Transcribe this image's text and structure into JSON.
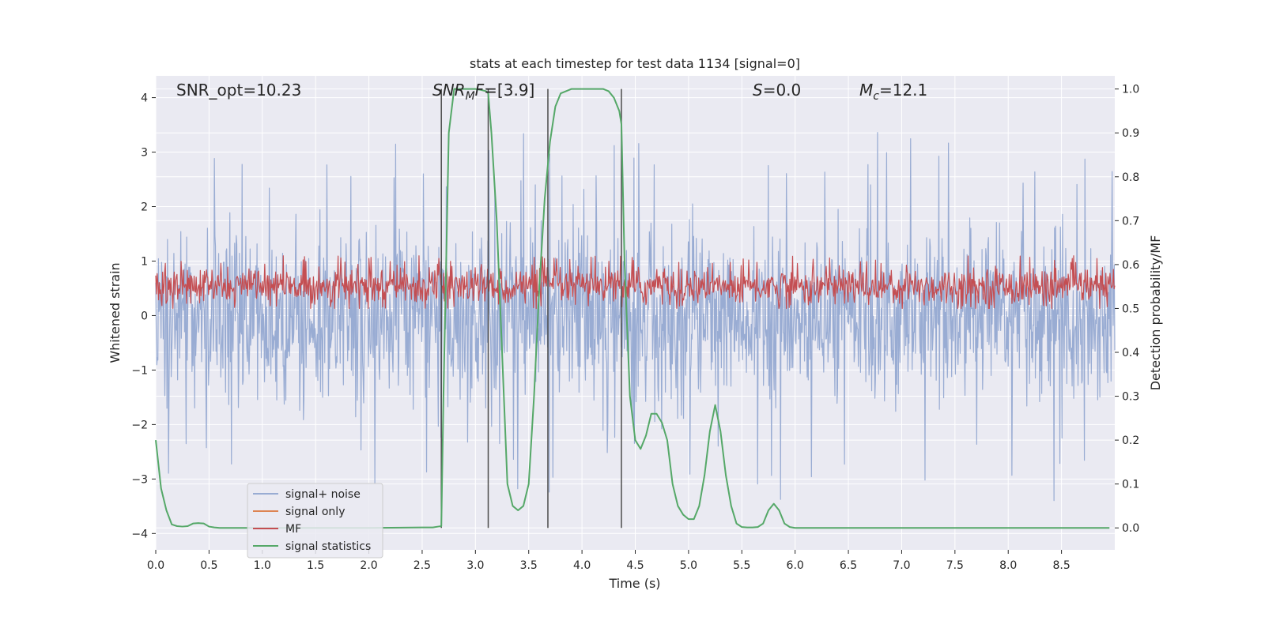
{
  "chart_data": {
    "type": "line",
    "title": "stats at each timestep for test data 1134 [signal=0]",
    "xlabel": "Time (s)",
    "ylabel": "Whitened strain",
    "ylabel_right": "Detection probability/MF",
    "xlim": [
      0.0,
      9.0
    ],
    "ylim_left": [
      -4.3,
      4.4
    ],
    "ylim_right": [
      -0.05,
      1.03
    ],
    "x_ticks": [
      "0.0",
      "0.5",
      "1.0",
      "1.5",
      "2.0",
      "2.5",
      "3.0",
      "3.5",
      "4.0",
      "4.5",
      "5.0",
      "5.5",
      "6.0",
      "6.5",
      "7.0",
      "7.5",
      "8.0",
      "8.5"
    ],
    "y_left_ticks": [
      "4",
      "3",
      "2",
      "1",
      "0",
      "−1",
      "−2",
      "−3",
      "−4"
    ],
    "y_right_ticks": [
      "1.0",
      "0.9",
      "0.8",
      "0.7",
      "0.6",
      "0.5",
      "0.4",
      "0.3",
      "0.2",
      "0.1",
      "0.0"
    ],
    "grid": true,
    "legend_position": "lower-left",
    "colors": {
      "background": "#eaeaf2",
      "noise": "#99acd3",
      "signal_only": "#dd8452",
      "mf": "#c44e52",
      "statistics": "#55a868",
      "vlines": "#4c4c4c"
    },
    "annotations": [
      {
        "key": "snr_opt",
        "text": "SNR_opt=10.23"
      },
      {
        "key": "snr_mf",
        "text": "=[3.9]",
        "math_main": "SNR",
        "math_sub": "M",
        "math_after": "F"
      },
      {
        "key": "s_value",
        "text": "=0.0",
        "math_main": "S"
      },
      {
        "key": "mc_value",
        "text": "=12.1",
        "math_main": "M",
        "math_sub": "c"
      }
    ],
    "vertical_lines_x": [
      2.68,
      3.12,
      3.68,
      4.37
    ],
    "series": [
      {
        "name": "signal+ noise",
        "axis": "left",
        "style": "dense noise trace",
        "typical_range": [
          -1.5,
          1.6
        ],
        "peak_range": [
          -3.6,
          3.4
        ]
      },
      {
        "name": "signal only",
        "axis": "left",
        "style": "flat (not visible)",
        "value": 0.0
      },
      {
        "name": "MF",
        "axis": "right",
        "style": "dense noise trace",
        "typical_range": [
          0.5,
          0.6
        ],
        "peak_range": [
          0.5,
          0.62
        ]
      },
      {
        "name": "signal statistics",
        "axis": "right",
        "style": "line",
        "x": [
          0.0,
          0.05,
          0.1,
          0.15,
          0.2,
          0.25,
          0.3,
          0.35,
          0.4,
          0.45,
          0.5,
          0.55,
          0.6,
          0.7,
          0.8,
          1.0,
          1.5,
          2.0,
          2.5,
          2.6,
          2.65,
          2.68,
          2.7,
          2.75,
          2.8,
          2.85,
          2.9,
          3.0,
          3.05,
          3.1,
          3.12,
          3.15,
          3.2,
          3.25,
          3.3,
          3.35,
          3.4,
          3.45,
          3.5,
          3.55,
          3.6,
          3.65,
          3.7,
          3.75,
          3.8,
          3.85,
          3.9,
          4.0,
          4.1,
          4.2,
          4.25,
          4.3,
          4.35,
          4.37,
          4.4,
          4.45,
          4.5,
          4.55,
          4.6,
          4.65,
          4.7,
          4.75,
          4.8,
          4.85,
          4.9,
          4.95,
          5.0,
          5.05,
          5.1,
          5.15,
          5.2,
          5.25,
          5.3,
          5.35,
          5.4,
          5.45,
          5.5,
          5.55,
          5.6,
          5.65,
          5.7,
          5.75,
          5.8,
          5.85,
          5.9,
          5.95,
          6.0,
          6.5,
          7.0,
          7.5,
          8.0,
          8.5,
          8.95
        ],
        "y": [
          0.2,
          0.09,
          0.04,
          0.008,
          0.004,
          0.003,
          0.004,
          0.01,
          0.011,
          0.01,
          0.003,
          0.001,
          0.0,
          0.0,
          0.0,
          0.0,
          0.0,
          0.0,
          0.001,
          0.001,
          0.003,
          0.004,
          0.3,
          0.9,
          1.0,
          1.0,
          1.0,
          1.0,
          0.998,
          0.995,
          0.99,
          0.9,
          0.7,
          0.4,
          0.1,
          0.05,
          0.04,
          0.05,
          0.1,
          0.3,
          0.55,
          0.75,
          0.88,
          0.96,
          0.99,
          0.995,
          1.0,
          1.0,
          1.0,
          1.0,
          0.995,
          0.98,
          0.95,
          0.92,
          0.6,
          0.3,
          0.2,
          0.18,
          0.21,
          0.26,
          0.26,
          0.24,
          0.2,
          0.1,
          0.05,
          0.03,
          0.02,
          0.02,
          0.05,
          0.12,
          0.22,
          0.28,
          0.22,
          0.12,
          0.05,
          0.01,
          0.002,
          0.001,
          0.001,
          0.002,
          0.01,
          0.04,
          0.055,
          0.04,
          0.01,
          0.002,
          0.0,
          0.0,
          0.0,
          0.0,
          0.0,
          0.0,
          0.0
        ]
      }
    ]
  }
}
